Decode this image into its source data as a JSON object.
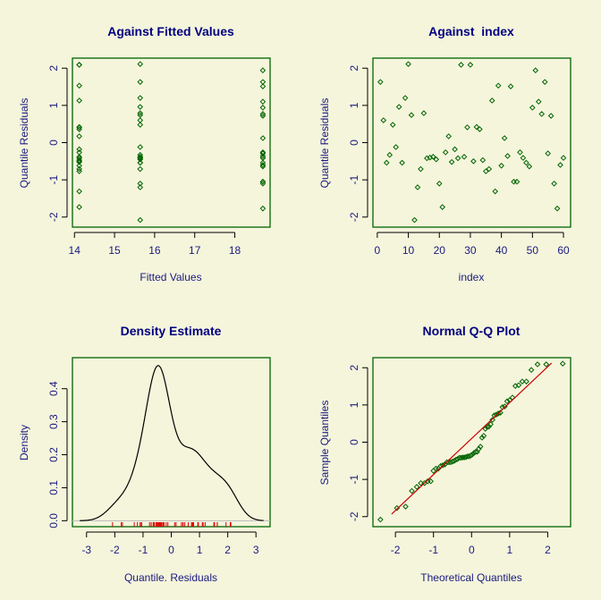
{
  "colors": {
    "background": "#f5f5dc",
    "frame": "#006400",
    "points": "#006400",
    "title": "#000080",
    "axis_text": "#1a1a80",
    "qqline": "#cc0000",
    "rug": "#dd0000",
    "density": "#000000",
    "zero_line": "#bbbbbb"
  },
  "chart_data": [
    {
      "type": "scatter",
      "title": "Against Fitted Values",
      "xlabel": "Fitted Values",
      "ylabel": "Quantile Residuals",
      "xlim": [
        13.95,
        18.88
      ],
      "ylim": [
        -2.27,
        2.27
      ],
      "xticks": [
        14,
        15,
        16,
        17,
        18
      ],
      "yticks": [
        -2,
        -1,
        0,
        1,
        2
      ],
      "fitted_groups": [
        {
          "fitted": 15.64,
          "index_from": 1,
          "index_to": 20
        },
        {
          "fitted": 14.12,
          "index_from": 21,
          "index_to": 40
        },
        {
          "fitted": 18.7,
          "index_from": 41,
          "index_to": 60
        }
      ]
    },
    {
      "type": "scatter",
      "title": "Against  index",
      "xlabel": "index",
      "ylabel": "Quantile Residuals",
      "xlim": [
        -1.4,
        62.3
      ],
      "ylim": [
        -2.27,
        2.27
      ],
      "xticks": [
        0,
        10,
        20,
        30,
        40,
        50,
        60
      ],
      "yticks": [
        -2,
        -1,
        0,
        1,
        2
      ],
      "residuals": [
        1.63,
        0.6,
        -0.54,
        -0.33,
        0.48,
        -0.12,
        0.96,
        -0.54,
        1.2,
        2.11,
        0.74,
        -2.08,
        -1.2,
        -0.71,
        0.79,
        -0.42,
        -0.4,
        -0.38,
        -0.45,
        -1.1,
        -1.73,
        -0.26,
        0.17,
        -0.52,
        -0.18,
        -0.42,
        2.09,
        -0.38,
        0.41,
        2.09,
        -0.5,
        0.42,
        0.36,
        -0.47,
        -0.77,
        -0.71,
        1.13,
        -1.31,
        1.53,
        -0.62,
        0.12,
        -0.36,
        1.51,
        -1.05,
        -1.05,
        -0.26,
        -0.41,
        -0.54,
        -0.64,
        0.94,
        1.94,
        1.1,
        0.77,
        1.63,
        -0.29,
        0.72,
        -1.1,
        -1.77,
        -0.6,
        -0.41
      ]
    },
    {
      "type": "line",
      "title": "Density Estimate",
      "xlabel": "Quantile. Residuals",
      "ylabel": "Density",
      "xlim": [
        -3.5,
        3.5
      ],
      "ylim": [
        -0.018,
        0.494
      ],
      "xticks": [
        -3,
        -2,
        -1,
        0,
        1,
        2,
        3
      ],
      "yticks": [
        0.0,
        0.1,
        0.2,
        0.3,
        0.4
      ],
      "ytick_labels": [
        "0.0",
        "0.1",
        "0.2",
        "0.3",
        "0.4"
      ],
      "rug": true
    },
    {
      "type": "scatter",
      "title": "Normal Q-Q Plot",
      "xlabel": "Theoretical Quantiles",
      "ylabel": "Sample Quantiles",
      "xlim": [
        -2.59,
        2.6
      ],
      "ylim": [
        -2.27,
        2.27
      ],
      "xticks": [
        -2,
        -1,
        0,
        1,
        2
      ],
      "yticks": [
        -2,
        -1,
        0,
        1,
        2
      ],
      "reference_line": "qqline"
    }
  ]
}
